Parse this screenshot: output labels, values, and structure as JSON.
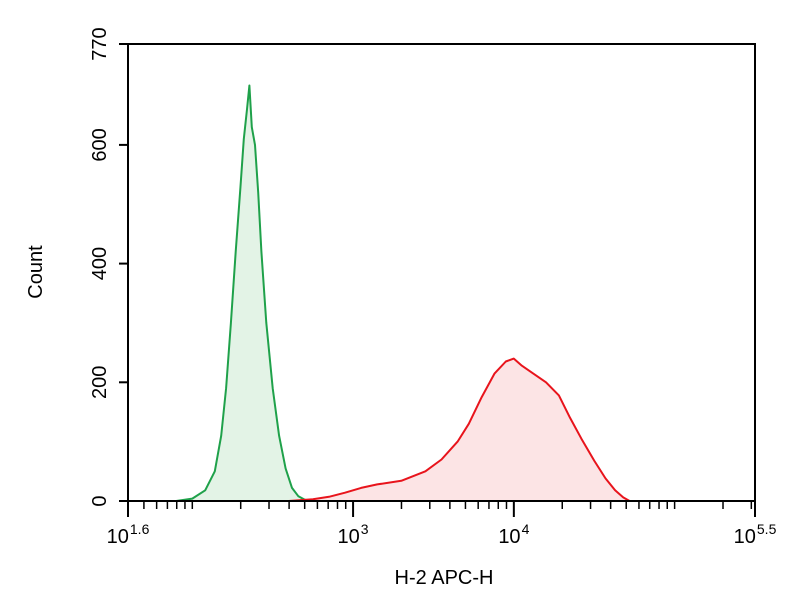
{
  "chart_data": {
    "type": "area",
    "title": "",
    "xlabel": "H-2 APC-H",
    "ylabel": "Count",
    "x_scale": "log10",
    "xlim": [
      1.6,
      5.5
    ],
    "ylim": [
      0,
      770
    ],
    "x_ticks": [
      {
        "base": "10",
        "exp": "1.6",
        "value": 1.6
      },
      {
        "base": "10",
        "exp": "3",
        "value": 3
      },
      {
        "base": "10",
        "exp": "4",
        "value": 4
      },
      {
        "base": "10",
        "exp": "5.5",
        "value": 5.5
      }
    ],
    "y_ticks": [
      {
        "label": "0",
        "value": 0
      },
      {
        "label": "200",
        "value": 200
      },
      {
        "label": "400",
        "value": 400
      },
      {
        "label": "600",
        "value": 600
      },
      {
        "label": "770",
        "value": 770
      }
    ],
    "grid": false,
    "legend": "none",
    "series": [
      {
        "color": "#1fa14a",
        "fill": "#e3f3e6",
        "points": [
          [
            1.9,
            0
          ],
          [
            2.0,
            4
          ],
          [
            2.08,
            18
          ],
          [
            2.14,
            50
          ],
          [
            2.18,
            110
          ],
          [
            2.21,
            190
          ],
          [
            2.24,
            300
          ],
          [
            2.27,
            420
          ],
          [
            2.3,
            530
          ],
          [
            2.32,
            610
          ],
          [
            2.34,
            660
          ],
          [
            2.355,
            700
          ],
          [
            2.37,
            630
          ],
          [
            2.39,
            600
          ],
          [
            2.41,
            520
          ],
          [
            2.43,
            420
          ],
          [
            2.46,
            300
          ],
          [
            2.5,
            190
          ],
          [
            2.54,
            110
          ],
          [
            2.58,
            55
          ],
          [
            2.62,
            22
          ],
          [
            2.66,
            8
          ],
          [
            2.7,
            2
          ],
          [
            2.75,
            0
          ]
        ]
      },
      {
        "color": "#e8141c",
        "fill": "#fce4e5",
        "points": [
          [
            2.6,
            0
          ],
          [
            2.75,
            3
          ],
          [
            2.85,
            7
          ],
          [
            2.95,
            14
          ],
          [
            3.05,
            22
          ],
          [
            3.15,
            28
          ],
          [
            3.3,
            34
          ],
          [
            3.45,
            50
          ],
          [
            3.55,
            70
          ],
          [
            3.65,
            100
          ],
          [
            3.72,
            130
          ],
          [
            3.8,
            175
          ],
          [
            3.88,
            215
          ],
          [
            3.95,
            235
          ],
          [
            4.0,
            240
          ],
          [
            4.05,
            228
          ],
          [
            4.12,
            215
          ],
          [
            4.2,
            200
          ],
          [
            4.28,
            178
          ],
          [
            4.35,
            140
          ],
          [
            4.42,
            105
          ],
          [
            4.5,
            68
          ],
          [
            4.57,
            38
          ],
          [
            4.63,
            18
          ],
          [
            4.68,
            6
          ],
          [
            4.72,
            0
          ]
        ]
      }
    ]
  }
}
